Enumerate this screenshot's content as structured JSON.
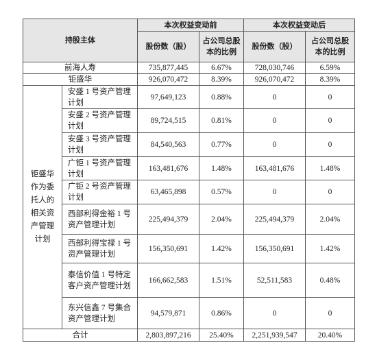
{
  "table": {
    "header": {
      "subject": "持股主体",
      "before": "本次权益变动前",
      "after": "本次权益变动后",
      "columns": [
        "股份数（股）",
        "占公司总股本的比例",
        "股份数（股）",
        "占公司总股本的比例"
      ]
    },
    "rows": [
      {
        "label": "前海人寿",
        "cells": [
          "735,877,445",
          "6.67%",
          "728,030,746",
          "6.59%"
        ]
      },
      {
        "label": "钜盛华",
        "cells": [
          "926,070,472",
          "8.39%",
          "926,070,472",
          "8.39%"
        ]
      }
    ],
    "group_label": "钜盛华作为委托人的相关资产管理计划",
    "plans": [
      {
        "label": "安盛 1 号资产管理计划",
        "cells": [
          "97,649,123",
          "0.88%",
          "0",
          "0"
        ]
      },
      {
        "label": "安盛 2 号资产管理计划",
        "cells": [
          "89,724,515",
          "0.81%",
          "0",
          "0"
        ]
      },
      {
        "label": "安盛 3 号资产管理计划",
        "cells": [
          "84,540,563",
          "0.77%",
          "0",
          "0"
        ]
      },
      {
        "label": "广钜 1 号资产管理计划",
        "cells": [
          "163,481,676",
          "1.48%",
          "163,481,676",
          "1.48%"
        ]
      },
      {
        "label": "广钜 2 号资产管理计划",
        "cells": [
          "63,465,898",
          "0.57%",
          "0",
          "0"
        ]
      },
      {
        "label": "西部利得金裕 1 号资产管理计划",
        "cells": [
          "225,494,379",
          "2.04%",
          "225,494,379",
          "2.04%"
        ]
      },
      {
        "label": "西部利得宝禄 1 号资产管理计划",
        "cells": [
          "156,350,691",
          "1.42%",
          "156,350,691",
          "1.42%"
        ]
      },
      {
        "label": "泰信价值 1 号特定客户资产管理计划",
        "cells": [
          "166,662,583",
          "1.51%",
          "52,511,583",
          "0.48%"
        ]
      },
      {
        "label": "东兴信鑫 7 号集合资产管理计划",
        "cells": [
          "94,579,871",
          "0.86%",
          "0",
          "0"
        ]
      }
    ],
    "total": {
      "label": "合计",
      "cells": [
        "2,803,897,216",
        "25.40%",
        "2,251,939,547",
        "20.40%"
      ]
    }
  }
}
